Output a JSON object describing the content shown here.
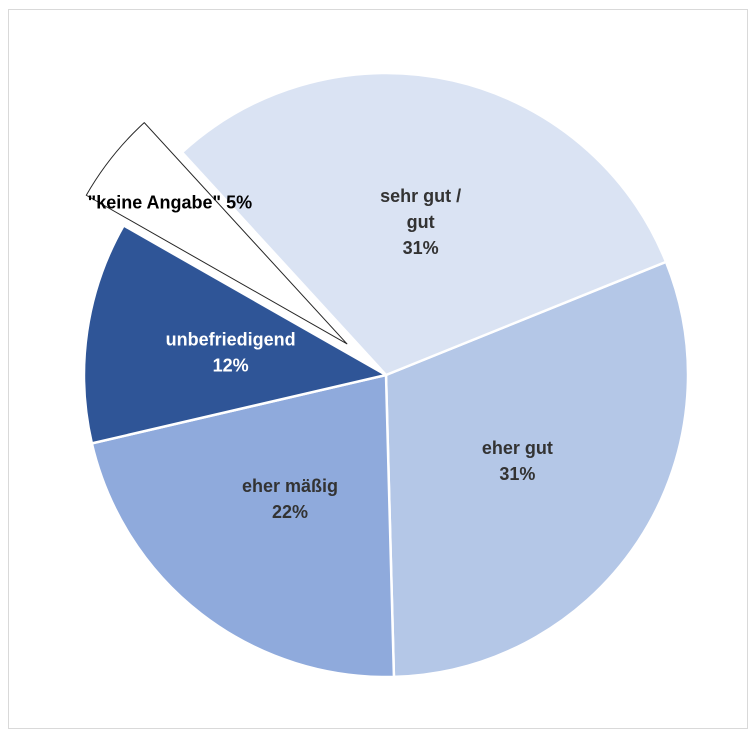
{
  "chart_data": {
    "type": "pie",
    "slices": [
      {
        "name": "eher gut",
        "value": 31,
        "label_lines": [
          "eher gut",
          "31%"
        ],
        "color": "#b4c7e7",
        "text_color": "#333333",
        "exploded": false
      },
      {
        "name": "eher mäßig",
        "value": 22,
        "label_lines": [
          "eher mäßig",
          "22%"
        ],
        "color": "#8faadc",
        "text_color": "#333333",
        "exploded": false
      },
      {
        "name": "unbefriedigend",
        "value": 12,
        "label_lines": [
          "unbefriedigend",
          "12%"
        ],
        "color": "#2f5597",
        "text_color": "#ffffff",
        "exploded": false
      },
      {
        "name": "\"keine Angabe\"",
        "value": 5,
        "label_lines": [
          "\"keine Angabe\" 5%"
        ],
        "color": "#ffffff",
        "text_color": "#000000",
        "exploded": true
      },
      {
        "name": "sehr gut / gut",
        "value": 31,
        "label_lines": [
          "sehr gut /",
          "gut",
          "31%"
        ],
        "color": "#dae3f3",
        "text_color": "#333333",
        "exploded": false
      }
    ],
    "start_angle_deg": -22,
    "direction": "clockwise",
    "legend": "none",
    "title": ""
  }
}
